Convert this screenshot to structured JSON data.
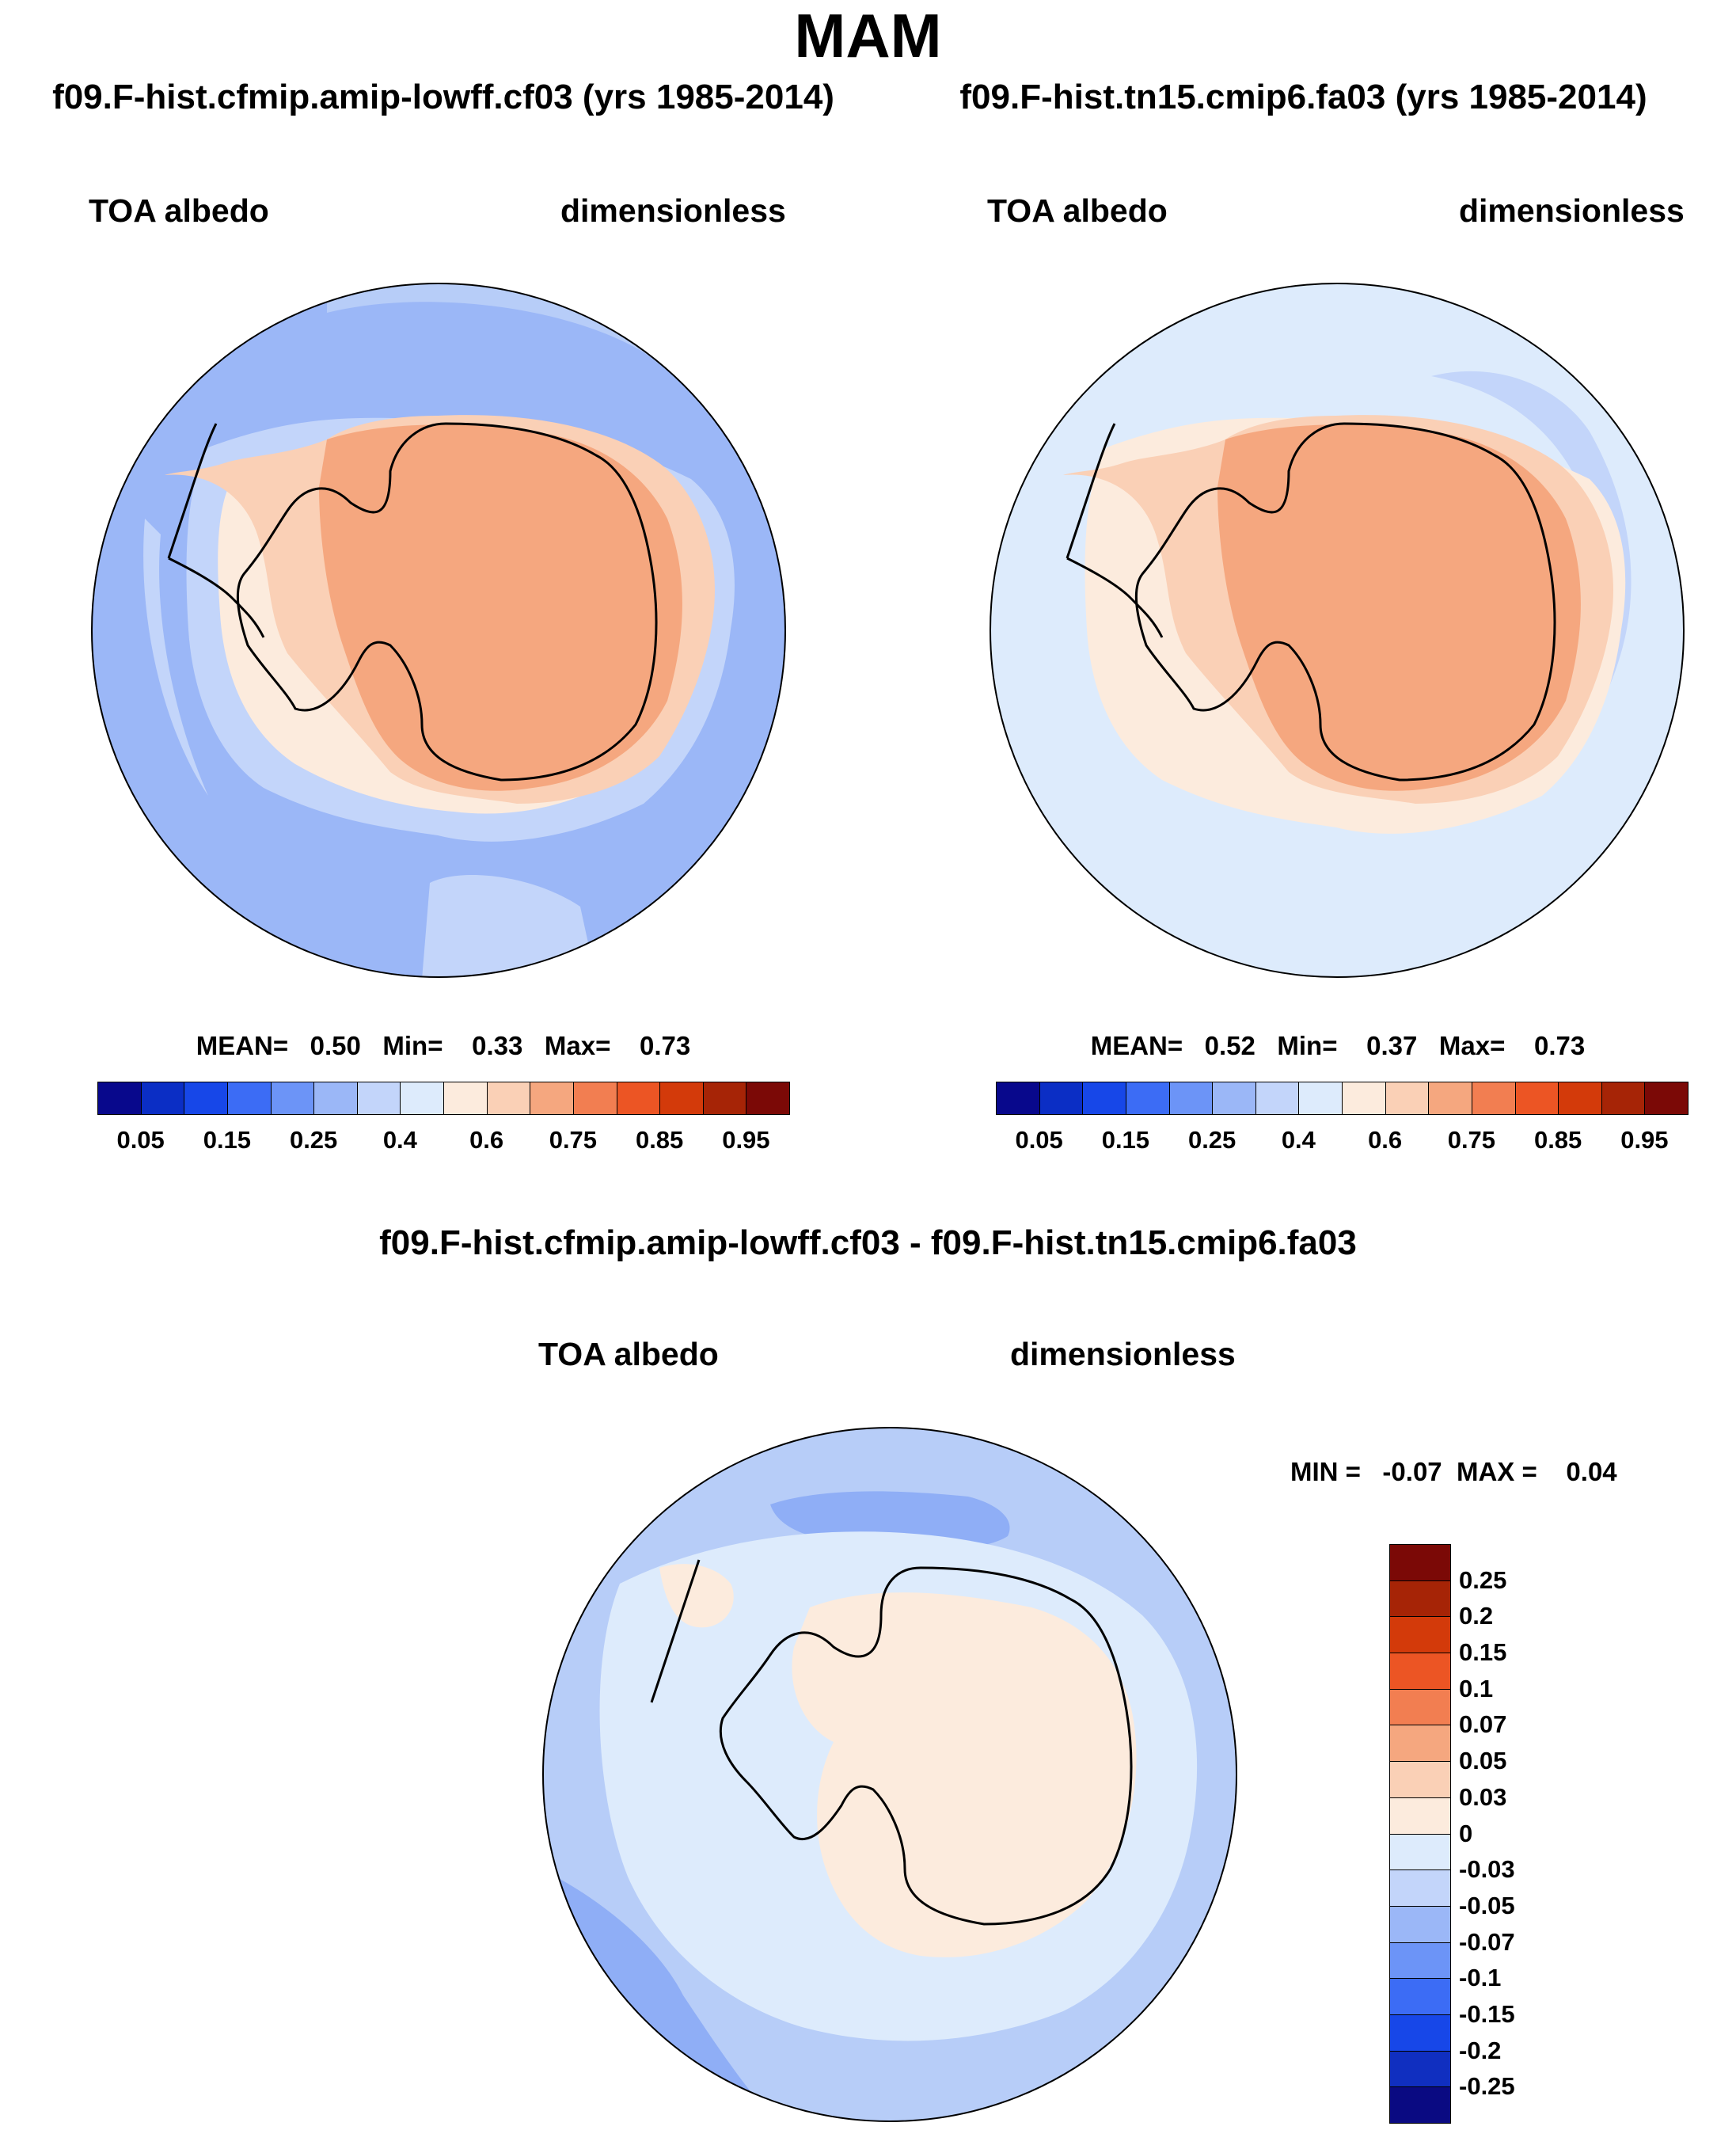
{
  "figure_title": "MAM",
  "colors": {
    "outline": "#000000",
    "seq_scale": [
      "#08088C",
      "#0B2EC5",
      "#1747E8",
      "#3C6CF5",
      "#6C94F7",
      "#9BB7F7",
      "#C3D5FA",
      "#DDEBFC",
      "#FCEBDD",
      "#FAD0B6",
      "#F5A77F",
      "#F27E51",
      "#EC5524",
      "#D33A0A",
      "#A62406",
      "#7B0906"
    ],
    "diff_scale": [
      "#0A0A82",
      "#102FC0",
      "#1747E8",
      "#3C6CF5",
      "#6C94F7",
      "#9BB7F7",
      "#C3D5FA",
      "#DDEBFC",
      "#FCEBDD",
      "#FAD0B6",
      "#F5A77F",
      "#F27E51",
      "#EC5524",
      "#D33A0A",
      "#A62406",
      "#7B0906"
    ]
  },
  "panels": [
    {
      "title": "f09.F-hist.cfmip.amip-lowff.cf03 (yrs 1985-2014)",
      "variable": "TOA albedo",
      "units": "dimensionless",
      "stats": "MEAN=   0.50   Min=    0.33   Max=    0.73",
      "colorbar_labels": [
        "0.05",
        "0.15",
        "0.25",
        "0.4",
        "0.6",
        "0.75",
        "0.85",
        "0.95"
      ]
    },
    {
      "title": "f09.F-hist.tn15.cmip6.fa03 (yrs 1985-2014)",
      "variable": "TOA albedo",
      "units": "dimensionless",
      "stats": "MEAN=   0.52   Min=    0.37   Max=    0.73",
      "colorbar_labels": [
        "0.05",
        "0.15",
        "0.25",
        "0.4",
        "0.6",
        "0.75",
        "0.85",
        "0.95"
      ]
    }
  ],
  "difference": {
    "title": "f09.F-hist.cfmip.amip-lowff.cf03 - f09.F-hist.tn15.cmip6.fa03",
    "variable": "TOA albedo",
    "units": "dimensionless",
    "stats": "MIN =   -0.07  MAX =    0.04",
    "colorbar_labels": [
      "0.25",
      "0.2",
      "0.15",
      "0.1",
      "0.07",
      "0.05",
      "0.03",
      "0",
      "-0.03",
      "-0.05",
      "-0.07",
      "-0.1",
      "-0.15",
      "-0.2",
      "-0.25"
    ]
  }
}
